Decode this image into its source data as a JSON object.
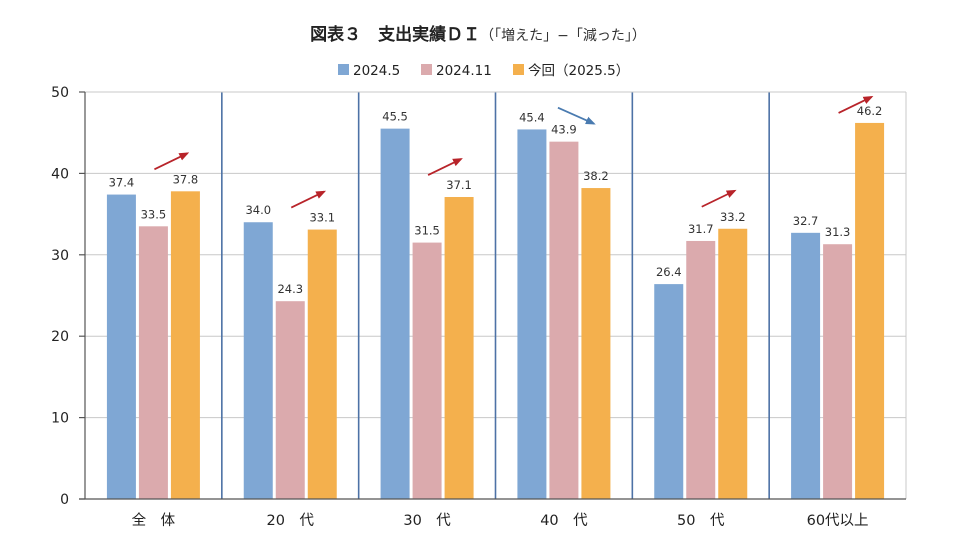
{
  "chart_data": {
    "type": "bar",
    "title": "図表３　支出実績ＤＩ",
    "subtitle": "（「増えた」−「減った」）",
    "categories": [
      "全　体",
      "20　代",
      "30　代",
      "40　代",
      "50　代",
      "60代以上"
    ],
    "series": [
      {
        "name": "2024.5",
        "color": "#7fa7d4",
        "values": [
          37.4,
          34.0,
          45.5,
          45.4,
          26.4,
          32.7
        ]
      },
      {
        "name": "2024.11",
        "color": "#dbaaad",
        "values": [
          33.5,
          24.3,
          31.5,
          43.9,
          31.7,
          31.3
        ]
      },
      {
        "name": "今回（2025.5）",
        "color": "#f4b04d",
        "values": [
          37.8,
          33.1,
          37.1,
          38.2,
          33.2,
          46.2
        ]
      }
    ],
    "data_labels": [
      [
        "37.4",
        "34.0",
        "45.5",
        "45.4",
        "26.4",
        "32.7"
      ],
      [
        "33.5",
        "24.3",
        "31.5",
        "43.9",
        "31.7",
        "31.3"
      ],
      [
        "37.8",
        "33.1",
        "37.1",
        "38.2",
        "33.2",
        "46.2"
      ]
    ],
    "ylim": [
      0,
      50
    ],
    "yticks": [
      0,
      10,
      20,
      30,
      40,
      50
    ],
    "grid": true,
    "legend": "top-center",
    "trend_arrows": [
      "up",
      "up",
      "up",
      "down",
      "up",
      "up"
    ],
    "arrow_colors": {
      "up": "#b8242a",
      "down": "#4a7bb0"
    }
  }
}
